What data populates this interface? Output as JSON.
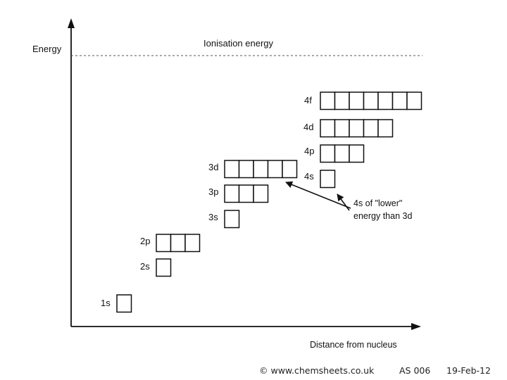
{
  "axes": {
    "y_label": "Energy",
    "x_label": "Distance from nucleus"
  },
  "ionisation_label": "Ionisation energy",
  "subshells": [
    {
      "label": "1s",
      "boxes": 1
    },
    {
      "label": "2s",
      "boxes": 1
    },
    {
      "label": "2p",
      "boxes": 3
    },
    {
      "label": "3s",
      "boxes": 1
    },
    {
      "label": "3p",
      "boxes": 3
    },
    {
      "label": "3d",
      "boxes": 5
    },
    {
      "label": "4s",
      "boxes": 1
    },
    {
      "label": "4p",
      "boxes": 3
    },
    {
      "label": "4d",
      "boxes": 5
    },
    {
      "label": "4f",
      "boxes": 7
    }
  ],
  "annotation": {
    "line1": "4s of \"lower\"",
    "line2": "energy than 3d"
  },
  "footer": {
    "copyright": "© www.chemsheets.co.uk",
    "code": "AS 006",
    "date": "19-Feb-12"
  }
}
